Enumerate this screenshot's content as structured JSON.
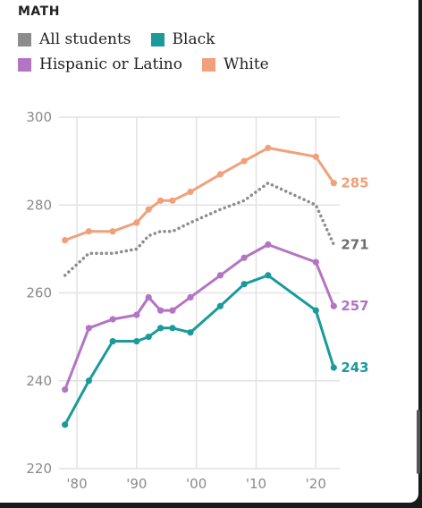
{
  "header": {
    "subject": "MATH"
  },
  "colors": {
    "all_students": "#8c8c8c",
    "black": "#1a9a9a",
    "hispanic": "#b474c4",
    "white": "#f0a07a",
    "grid": "#e2e2e2",
    "tick": "#8a8a8a"
  },
  "legend": [
    {
      "label": "All students",
      "color": "#8c8c8c"
    },
    {
      "label": "Black",
      "color": "#1a9a9a"
    },
    {
      "label": "Hispanic or Latino",
      "color": "#b474c4"
    },
    {
      "label": "White",
      "color": "#f0a07a"
    }
  ],
  "chart_data": {
    "type": "line",
    "xlim": [
      1977,
      2024
    ],
    "ylim": [
      220,
      300
    ],
    "yticks": [
      220,
      240,
      260,
      280,
      300
    ],
    "xticks": [
      {
        "value": 1980,
        "label": "'80"
      },
      {
        "value": 1990,
        "label": "'90"
      },
      {
        "value": 2000,
        "label": "'00"
      },
      {
        "value": 2010,
        "label": "'10"
      },
      {
        "value": 2020,
        "label": "'20"
      }
    ],
    "grid": true,
    "series": [
      {
        "name": "All students",
        "color": "#8c8c8c",
        "style": "dotted",
        "end_label": "271",
        "x": [
          1978,
          1982,
          1986,
          1990,
          1992,
          1994,
          1996,
          1999,
          2004,
          2008,
          2012,
          2020,
          2023
        ],
        "y": [
          264,
          269,
          269,
          270,
          273,
          274,
          274,
          276,
          279,
          281,
          285,
          280,
          271
        ]
      },
      {
        "name": "White",
        "color": "#f0a07a",
        "style": "solid",
        "end_label": "285",
        "x": [
          1978,
          1982,
          1986,
          1990,
          1992,
          1994,
          1996,
          1999,
          2004,
          2008,
          2012,
          2020,
          2023
        ],
        "y": [
          272,
          274,
          274,
          276,
          279,
          281,
          281,
          283,
          287,
          290,
          293,
          291,
          285
        ]
      },
      {
        "name": "Hispanic or Latino",
        "color": "#b474c4",
        "style": "solid",
        "end_label": "257",
        "x": [
          1978,
          1982,
          1986,
          1990,
          1992,
          1994,
          1996,
          1999,
          2004,
          2008,
          2012,
          2020,
          2023
        ],
        "y": [
          238,
          252,
          254,
          255,
          259,
          256,
          256,
          259,
          264,
          268,
          271,
          267,
          257
        ]
      },
      {
        "name": "Black",
        "color": "#1a9a9a",
        "style": "solid",
        "end_label": "243",
        "x": [
          1978,
          1982,
          1986,
          1990,
          1992,
          1994,
          1996,
          1999,
          2004,
          2008,
          2012,
          2020,
          2023
        ],
        "y": [
          230,
          240,
          249,
          249,
          250,
          252,
          252,
          251,
          257,
          262,
          264,
          256,
          243
        ]
      }
    ]
  }
}
